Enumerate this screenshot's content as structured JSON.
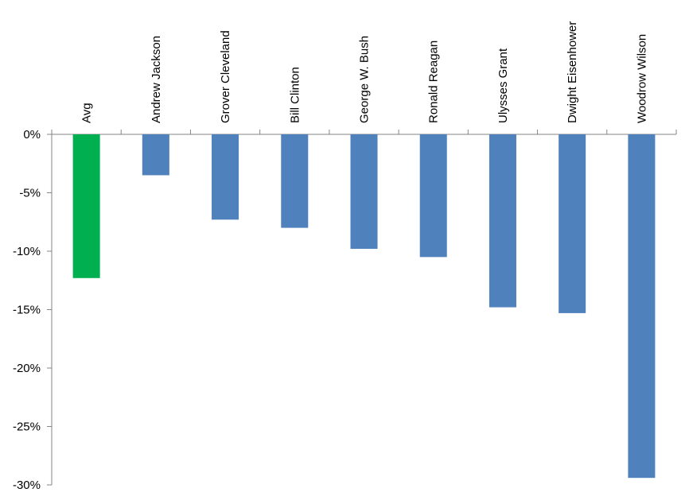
{
  "chart_data": {
    "type": "bar",
    "title": "",
    "xlabel": "",
    "ylabel": "",
    "categories": [
      "Avg",
      "Andrew Jackson",
      "Grover Cleveland",
      "Bill Clinton",
      "George W. Bush",
      "Ronald Reagan",
      "Ulysses Grant",
      "Dwight Eisenhower",
      "Woodrow Wilson"
    ],
    "values": [
      -12.3,
      -3.5,
      -7.3,
      -8.0,
      -9.8,
      -10.5,
      -14.8,
      -15.3,
      -29.4
    ],
    "bar_colors": [
      "#00B050",
      "#4F81BD",
      "#4F81BD",
      "#4F81BD",
      "#4F81BD",
      "#4F81BD",
      "#4F81BD",
      "#4F81BD",
      "#4F81BD"
    ],
    "ylim": [
      -30,
      0
    ],
    "y_ticks": [
      0,
      -5,
      -10,
      -15,
      -20,
      -25,
      -30
    ],
    "y_tick_labels": [
      "0%",
      "-5%",
      "-10%",
      "-15%",
      "-20%",
      "-25%",
      "-30%"
    ],
    "grid": false,
    "legend": "none",
    "category_label_position": "top, rotated vertical"
  }
}
